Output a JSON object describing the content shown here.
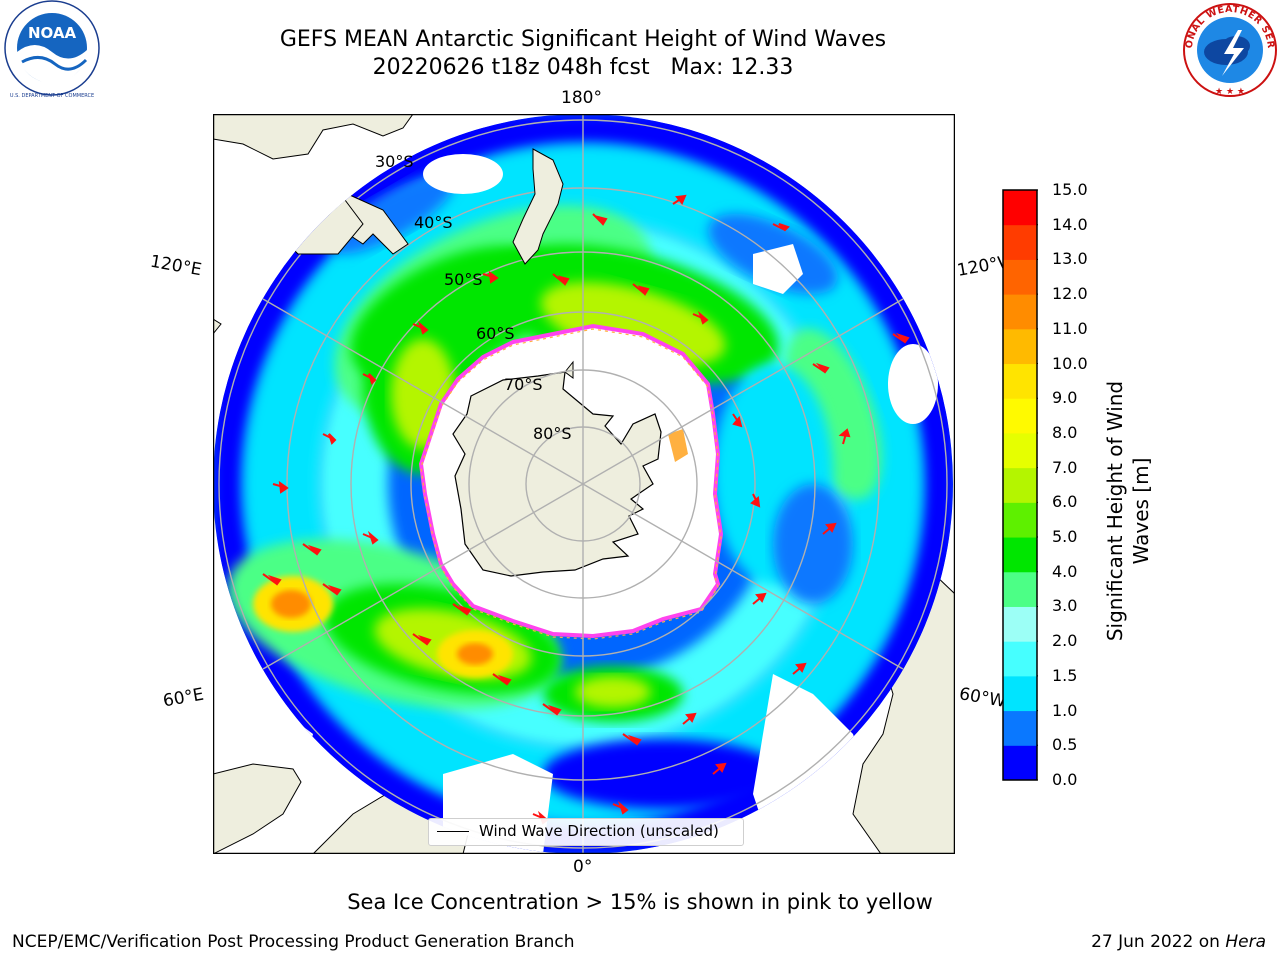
{
  "title": {
    "line1": "GEFS MEAN Antarctic Significant Height of Wind Waves",
    "line2": "20220626 t18z 048h fcst   Max: 12.33"
  },
  "logos": {
    "left": {
      "name": "noaa-logo",
      "text": "NOAA",
      "ring_text": "NATIONAL OCEANIC AND ATMOSPHERIC ADMINISTRATION · U.S. DEPARTMENT OF COMMERCE"
    },
    "right": {
      "name": "nws-logo",
      "ring_text": "NATIONAL WEATHER SERVICE"
    }
  },
  "map": {
    "projection": "south-polar-stereographic",
    "longitude_labels": {
      "top": "180°",
      "bottom": "0°",
      "upper_left": "120°E",
      "upper_right": "120°W",
      "lower_left": "60°E",
      "lower_right": "60°W"
    },
    "latitude_labels": [
      "30°S",
      "40°S",
      "50°S",
      "60°S",
      "70°S",
      "80°S"
    ],
    "legend": "Wind Wave Direction (unscaled)",
    "colors": {
      "land": "#eeeede",
      "ice_edge": "#ff44ee",
      "ice_inner": "#ffb040",
      "arrow": "#ff1111",
      "grid": "#b0b0b0"
    }
  },
  "colorbar": {
    "title_line1": "Significant Height of Wind",
    "title_line2": "Waves [m]",
    "ticks": [
      "0.0",
      "0.5",
      "1.0",
      "1.5",
      "2.0",
      "3.0",
      "4.0",
      "5.0",
      "6.0",
      "7.0",
      "8.0",
      "9.0",
      "10.0",
      "11.0",
      "12.0",
      "13.0",
      "14.0",
      "15.0"
    ],
    "colors": [
      "#0000ff",
      "#0a78ff",
      "#00e4ff",
      "#46ffff",
      "#9cfff6",
      "#4cff86",
      "#00e600",
      "#5ef000",
      "#b4f500",
      "#e6ff00",
      "#fffa00",
      "#ffe400",
      "#ffba00",
      "#ff8c00",
      "#ff6400",
      "#ff3c00",
      "#ff0000"
    ]
  },
  "caption": "Sea Ice Concentration > 15% is shown in pink to yellow",
  "footer": {
    "left": "NCEP/EMC/Verification Post Processing Product Generation Branch",
    "right_date": "27 Jun 2022 on ",
    "right_machine": "Hera"
  }
}
